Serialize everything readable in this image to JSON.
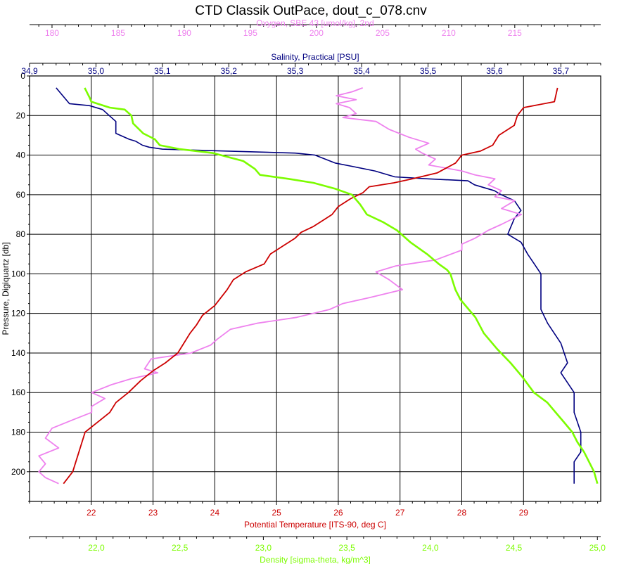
{
  "chart_data": {
    "type": "line",
    "title": "CTD Classik OutPace, dout_c_078.cnv",
    "grid": true,
    "y_axis": {
      "label": "Pressure, Digiquartz [db]",
      "range": [
        0,
        215
      ],
      "inverted": true,
      "ticks": [
        0,
        20,
        40,
        60,
        80,
        100,
        120,
        140,
        160,
        180,
        200
      ],
      "tick_labels": [
        "0",
        "20",
        "40",
        "60",
        "80",
        "100",
        "120",
        "140",
        "160",
        "180",
        "200"
      ]
    },
    "x_axes": [
      {
        "id": "oxygen",
        "label": "Oxygen, SBE 43 [umol/kg], 2nd",
        "position": "top-outer",
        "color": "#ee82ee",
        "range": [
          178.3,
          221.5
        ],
        "ticks": [
          180,
          185,
          190,
          195,
          200,
          205,
          210,
          215
        ],
        "tick_labels": [
          "180",
          "185",
          "190",
          "195",
          "200",
          "205",
          "210",
          "215"
        ]
      },
      {
        "id": "salinity",
        "label": "Salinity, Practical [PSU]",
        "position": "top-inner",
        "color": "#000080",
        "range": [
          34.9,
          35.76
        ],
        "ticks": [
          34.9,
          35.0,
          35.1,
          35.2,
          35.3,
          35.4,
          35.5,
          35.6,
          35.7
        ],
        "tick_labels": [
          "34,9",
          "35,0",
          "35,1",
          "35,2",
          "35,3",
          "35,4",
          "35,5",
          "35,6",
          "35,7"
        ]
      },
      {
        "id": "temperature",
        "label": "Potential Temperature [ITS-90, deg C]",
        "position": "bottom-inner",
        "color": "#cc0000",
        "range": [
          21.0,
          30.25
        ],
        "ticks": [
          22,
          23,
          24,
          25,
          26,
          27,
          28,
          29
        ],
        "tick_labels": [
          "22",
          "23",
          "24",
          "25",
          "26",
          "27",
          "28",
          "29"
        ]
      },
      {
        "id": "density",
        "label": "Density [sigma-theta, kg/m^3]",
        "position": "bottom-outer",
        "color": "#7cfc00",
        "range": [
          21.6,
          25.02
        ],
        "ticks": [
          22.0,
          22.5,
          23.0,
          23.5,
          24.0,
          24.5,
          25.0
        ],
        "tick_labels": [
          "22,0",
          "22,5",
          "23,0",
          "23,5",
          "24,0",
          "24,5",
          "25,0"
        ]
      }
    ],
    "series": [
      {
        "axis": "salinity",
        "color": "#000080",
        "points": [
          [
            34.94,
            6
          ],
          [
            34.96,
            14
          ],
          [
            34.99,
            15
          ],
          [
            35.01,
            17
          ],
          [
            35.02,
            20
          ],
          [
            35.03,
            23
          ],
          [
            35.03,
            29
          ],
          [
            35.05,
            32
          ],
          [
            35.06,
            33
          ],
          [
            35.07,
            35
          ],
          [
            35.08,
            36
          ],
          [
            35.1,
            37
          ],
          [
            35.2,
            38
          ],
          [
            35.3,
            39
          ],
          [
            35.33,
            40
          ],
          [
            35.36,
            44
          ],
          [
            35.39,
            46
          ],
          [
            35.42,
            48
          ],
          [
            35.45,
            51
          ],
          [
            35.5,
            52
          ],
          [
            35.56,
            53
          ],
          [
            35.57,
            55
          ],
          [
            35.6,
            58
          ],
          [
            35.61,
            60
          ],
          [
            35.63,
            63
          ],
          [
            35.64,
            68
          ],
          [
            35.63,
            72
          ],
          [
            35.62,
            80
          ],
          [
            35.64,
            84
          ],
          [
            35.65,
            90
          ],
          [
            35.66,
            95
          ],
          [
            35.67,
            100
          ],
          [
            35.67,
            110
          ],
          [
            35.67,
            118
          ],
          [
            35.68,
            125
          ],
          [
            35.69,
            130
          ],
          [
            35.7,
            135
          ],
          [
            35.71,
            145
          ],
          [
            35.7,
            150
          ],
          [
            35.71,
            155
          ],
          [
            35.72,
            160
          ],
          [
            35.72,
            170
          ],
          [
            35.73,
            180
          ],
          [
            35.73,
            190
          ],
          [
            35.72,
            195
          ],
          [
            35.72,
            200
          ],
          [
            35.72,
            206
          ]
        ]
      },
      {
        "axis": "oxygen",
        "color": "#ee82ee",
        "points": [
          [
            203.5,
            6
          ],
          [
            202.7,
            8
          ],
          [
            201.5,
            10
          ],
          [
            203.0,
            12
          ],
          [
            201.5,
            14
          ],
          [
            202.5,
            16
          ],
          [
            203.0,
            19
          ],
          [
            202.0,
            21
          ],
          [
            204.5,
            23
          ],
          [
            205.5,
            27
          ],
          [
            207.0,
            31
          ],
          [
            208.5,
            34
          ],
          [
            207.5,
            37
          ],
          [
            208.0,
            39
          ],
          [
            209.0,
            42
          ],
          [
            208.5,
            45
          ],
          [
            211.0,
            48
          ],
          [
            212.0,
            50
          ],
          [
            213.5,
            52
          ],
          [
            213.0,
            55
          ],
          [
            214.0,
            58
          ],
          [
            213.5,
            61
          ],
          [
            215.0,
            63
          ],
          [
            214.0,
            67
          ],
          [
            215.5,
            70
          ],
          [
            214.0,
            75
          ],
          [
            213.0,
            78
          ],
          [
            212.0,
            82
          ],
          [
            211.0,
            85
          ],
          [
            211.0,
            88
          ],
          [
            209.0,
            93
          ],
          [
            206.0,
            96
          ],
          [
            204.5,
            99
          ],
          [
            205.5,
            103
          ],
          [
            206.5,
            108
          ],
          [
            204.0,
            112
          ],
          [
            202.0,
            115
          ],
          [
            201.0,
            118
          ],
          [
            198.5,
            122
          ],
          [
            195.5,
            125
          ],
          [
            193.5,
            128
          ],
          [
            192.5,
            133
          ],
          [
            192.0,
            136
          ],
          [
            190.5,
            140
          ],
          [
            187.5,
            143
          ],
          [
            187.0,
            148
          ],
          [
            188.0,
            150
          ],
          [
            186.0,
            153
          ],
          [
            184.5,
            156
          ],
          [
            183.0,
            160
          ],
          [
            184.0,
            163
          ],
          [
            183.0,
            167
          ],
          [
            183.0,
            170
          ],
          [
            181.5,
            174
          ],
          [
            180.0,
            178
          ],
          [
            179.5,
            183
          ],
          [
            180.5,
            188
          ],
          [
            179.0,
            192
          ],
          [
            179.5,
            196
          ],
          [
            179.0,
            200
          ],
          [
            179.5,
            203
          ],
          [
            180.5,
            206
          ]
        ]
      },
      {
        "axis": "temperature",
        "color": "#cc0000",
        "points": [
          [
            29.55,
            6
          ],
          [
            29.5,
            13
          ],
          [
            29.0,
            16
          ],
          [
            28.9,
            20
          ],
          [
            28.85,
            25
          ],
          [
            28.6,
            30
          ],
          [
            28.5,
            35
          ],
          [
            28.3,
            38
          ],
          [
            28.0,
            40
          ],
          [
            27.9,
            44
          ],
          [
            27.6,
            49
          ],
          [
            27.2,
            52
          ],
          [
            26.9,
            54
          ],
          [
            26.5,
            56
          ],
          [
            26.4,
            59
          ],
          [
            26.2,
            62
          ],
          [
            26.0,
            66
          ],
          [
            25.9,
            70
          ],
          [
            25.8,
            72
          ],
          [
            25.6,
            76
          ],
          [
            25.4,
            79
          ],
          [
            25.3,
            82
          ],
          [
            25.1,
            86
          ],
          [
            24.9,
            90
          ],
          [
            24.8,
            95
          ],
          [
            24.5,
            99
          ],
          [
            24.3,
            103
          ],
          [
            24.2,
            108
          ],
          [
            24.1,
            112
          ],
          [
            24.0,
            116
          ],
          [
            23.8,
            121
          ],
          [
            23.7,
            126
          ],
          [
            23.6,
            130
          ],
          [
            23.5,
            135
          ],
          [
            23.4,
            140
          ],
          [
            23.2,
            145
          ],
          [
            23.0,
            149
          ],
          [
            22.8,
            154
          ],
          [
            22.6,
            160
          ],
          [
            22.4,
            165
          ],
          [
            22.3,
            170
          ],
          [
            22.1,
            175
          ],
          [
            21.9,
            180
          ],
          [
            21.85,
            185
          ],
          [
            21.8,
            190
          ],
          [
            21.75,
            195
          ],
          [
            21.7,
            200
          ],
          [
            21.55,
            206
          ]
        ]
      },
      {
        "axis": "density",
        "color": "#7cfc00",
        "points": [
          [
            21.93,
            6
          ],
          [
            21.96,
            11
          ],
          [
            21.97,
            13
          ],
          [
            22.08,
            16
          ],
          [
            22.17,
            17
          ],
          [
            22.21,
            20
          ],
          [
            22.22,
            24
          ],
          [
            22.28,
            29
          ],
          [
            22.35,
            32
          ],
          [
            22.38,
            35
          ],
          [
            22.5,
            37
          ],
          [
            22.7,
            39
          ],
          [
            22.88,
            43
          ],
          [
            22.95,
            47
          ],
          [
            22.98,
            50
          ],
          [
            23.15,
            52
          ],
          [
            23.3,
            54
          ],
          [
            23.43,
            57
          ],
          [
            23.53,
            60
          ],
          [
            23.58,
            65
          ],
          [
            23.62,
            70
          ],
          [
            23.72,
            74
          ],
          [
            23.8,
            78
          ],
          [
            23.88,
            84
          ],
          [
            23.98,
            90
          ],
          [
            24.05,
            95
          ],
          [
            24.1,
            98
          ],
          [
            24.12,
            100
          ],
          [
            24.15,
            108
          ],
          [
            24.18,
            113
          ],
          [
            24.23,
            118
          ],
          [
            24.27,
            122
          ],
          [
            24.32,
            130
          ],
          [
            24.4,
            138
          ],
          [
            24.48,
            145
          ],
          [
            24.55,
            152
          ],
          [
            24.62,
            160
          ],
          [
            24.7,
            165
          ],
          [
            24.75,
            170
          ],
          [
            24.8,
            175
          ],
          [
            24.85,
            180
          ],
          [
            24.88,
            185
          ],
          [
            24.92,
            190
          ],
          [
            24.95,
            195
          ],
          [
            24.98,
            200
          ],
          [
            25.0,
            206
          ]
        ]
      }
    ]
  }
}
